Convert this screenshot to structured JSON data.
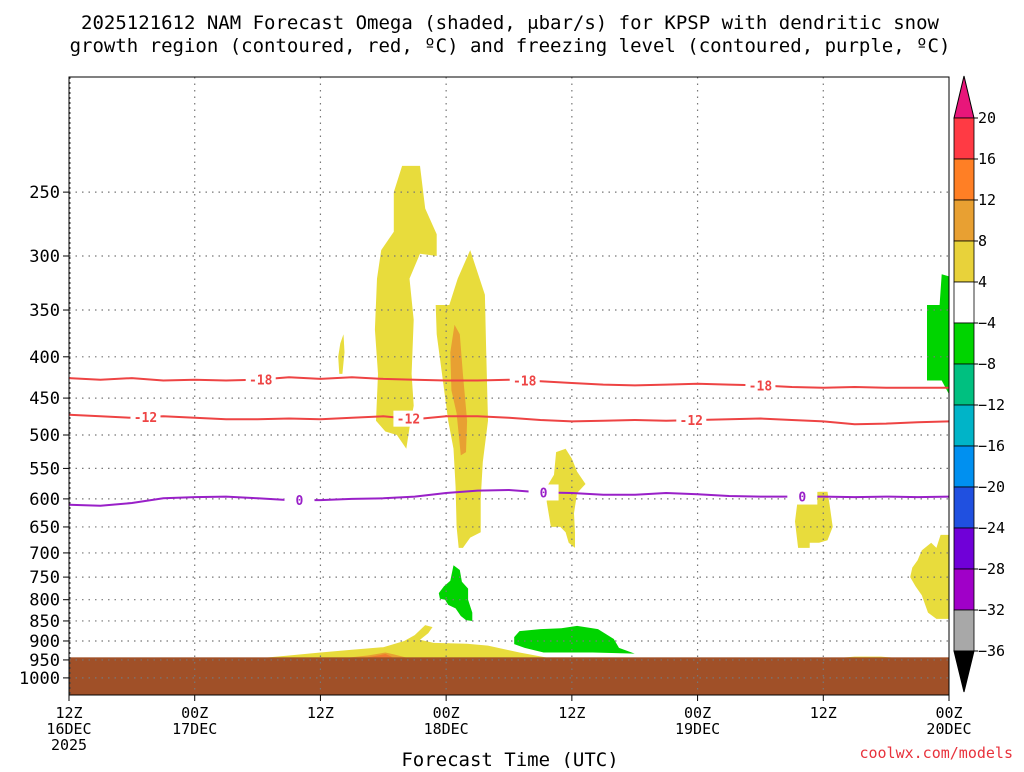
{
  "chart_data": {
    "type": "time-height-cross-section",
    "title": {
      "line1": "2025121612 NAM Forecast Omega (shaded, μbar/s) for KPSP with dendritic snow",
      "line2": "growth region (contoured, red, ºC) and freezing level (contoured, purple, ºC)"
    },
    "xlabel": "Forecast Time (UTC)",
    "credit": "coolwx.com/models",
    "y_axis": {
      "ticks": [
        "250",
        "300",
        "350",
        "400",
        "450",
        "500",
        "550",
        "600",
        "650",
        "700",
        "750",
        "800",
        "850",
        "900",
        "950",
        "1000"
      ],
      "range_hpa": [
        1050,
        180
      ]
    },
    "x_axis": {
      "range_hours": [
        0,
        84
      ],
      "ticks": [
        {
          "hour": 0,
          "lines": [
            "12Z",
            "16DEC",
            "2025"
          ]
        },
        {
          "hour": 12,
          "lines": [
            "00Z",
            "17DEC"
          ]
        },
        {
          "hour": 24,
          "lines": [
            "12Z"
          ]
        },
        {
          "hour": 36,
          "lines": [
            "00Z",
            "18DEC"
          ]
        },
        {
          "hour": 48,
          "lines": [
            "12Z"
          ]
        },
        {
          "hour": 60,
          "lines": [
            "00Z",
            "19DEC"
          ]
        },
        {
          "hour": 72,
          "lines": [
            "12Z"
          ]
        },
        {
          "hour": 84,
          "lines": [
            "00Z",
            "20DEC"
          ]
        }
      ]
    },
    "colorbar": {
      "labels": [
        "20",
        "16",
        "12",
        "8",
        "4",
        "−4",
        "−8",
        "−12",
        "−16",
        "−20",
        "−24",
        "−28",
        "−32",
        "−36"
      ],
      "segments": [
        "#ff3a44",
        "#ff7f25",
        "#e8a032",
        "#e8d23a",
        "#ffffff",
        "#00d400",
        "#00c080",
        "#00b4c8",
        "#0090f0",
        "#2050e0",
        "#7000d8",
        "#a000c8",
        "#a8a8a8"
      ],
      "top_arrow_color": "#e8167a",
      "bottom_arrow_color": "#000000"
    },
    "contours": [
      {
        "label": "-18",
        "color": "#ee4444",
        "label_hours": [
          18.3,
          43.5,
          66.0
        ],
        "points": [
          [
            0,
            425
          ],
          [
            3,
            427
          ],
          [
            6,
            425
          ],
          [
            9,
            428
          ],
          [
            12,
            427
          ],
          [
            15,
            428
          ],
          [
            18,
            427
          ],
          [
            21,
            424
          ],
          [
            24,
            426
          ],
          [
            27,
            424
          ],
          [
            30,
            426
          ],
          [
            33,
            427
          ],
          [
            36,
            428
          ],
          [
            39,
            428
          ],
          [
            42,
            427
          ],
          [
            45,
            429
          ],
          [
            48,
            431
          ],
          [
            51,
            433
          ],
          [
            54,
            434
          ],
          [
            57,
            433
          ],
          [
            60,
            432
          ],
          [
            63,
            433
          ],
          [
            66,
            434
          ],
          [
            69,
            436
          ],
          [
            72,
            437
          ],
          [
            75,
            436
          ],
          [
            78,
            437
          ],
          [
            81,
            437
          ],
          [
            84,
            437
          ]
        ]
      },
      {
        "label": "-12",
        "color": "#ee4444",
        "label_hours": [
          7.3,
          32.4,
          59.4
        ],
        "points": [
          [
            0,
            472
          ],
          [
            3,
            474
          ],
          [
            6,
            476
          ],
          [
            9,
            474
          ],
          [
            12,
            476
          ],
          [
            15,
            478
          ],
          [
            18,
            478
          ],
          [
            21,
            477
          ],
          [
            24,
            478
          ],
          [
            27,
            476
          ],
          [
            30,
            474
          ],
          [
            33,
            478
          ],
          [
            36,
            474
          ],
          [
            39,
            474
          ],
          [
            42,
            476
          ],
          [
            45,
            479
          ],
          [
            48,
            481
          ],
          [
            51,
            480
          ],
          [
            54,
            479
          ],
          [
            57,
            480
          ],
          [
            60,
            479
          ],
          [
            63,
            478
          ],
          [
            66,
            477
          ],
          [
            69,
            479
          ],
          [
            72,
            481
          ],
          [
            75,
            485
          ],
          [
            78,
            484
          ],
          [
            81,
            482
          ],
          [
            84,
            481
          ]
        ]
      },
      {
        "label": "0",
        "color": "#9920c8",
        "label_hours": [
          22.0,
          45.3,
          70.0
        ],
        "points": [
          [
            0,
            610
          ],
          [
            3,
            612
          ],
          [
            6,
            607
          ],
          [
            9,
            599
          ],
          [
            12,
            597
          ],
          [
            15,
            596
          ],
          [
            18,
            599
          ],
          [
            21,
            602
          ],
          [
            24,
            602
          ],
          [
            27,
            600
          ],
          [
            30,
            599
          ],
          [
            33,
            596
          ],
          [
            36,
            590
          ],
          [
            39,
            586
          ],
          [
            42,
            585
          ],
          [
            45,
            589
          ],
          [
            48,
            590
          ],
          [
            51,
            593
          ],
          [
            54,
            593
          ],
          [
            57,
            590
          ],
          [
            60,
            592
          ],
          [
            63,
            595
          ],
          [
            66,
            596
          ],
          [
            69,
            596
          ],
          [
            72,
            596
          ],
          [
            75,
            597
          ],
          [
            78,
            596
          ],
          [
            81,
            597
          ],
          [
            84,
            596
          ]
        ]
      }
    ],
    "shaded_regions": [
      {
        "name": "omega-plus4-to-8",
        "color": "#e8dc3c",
        "points": [
          [
            31.8,
            232
          ],
          [
            33.5,
            232
          ],
          [
            34.0,
            262
          ],
          [
            35.1,
            282
          ],
          [
            35.1,
            300
          ],
          [
            33.5,
            298
          ],
          [
            32.5,
            320
          ],
          [
            32.9,
            360
          ],
          [
            32.7,
            420
          ],
          [
            32.9,
            460
          ],
          [
            32.5,
            490
          ],
          [
            32.2,
            520
          ],
          [
            31.3,
            500
          ],
          [
            30.2,
            495
          ],
          [
            29.3,
            480
          ],
          [
            29.5,
            420
          ],
          [
            29.2,
            370
          ],
          [
            29.4,
            320
          ],
          [
            29.8,
            295
          ],
          [
            31.0,
            280
          ],
          [
            31.0,
            250
          ]
        ]
      },
      {
        "name": "omega-plus4-to-8",
        "color": "#e8dc3c",
        "points": [
          [
            38.3,
            295
          ],
          [
            39.7,
            335
          ],
          [
            39.8,
            385
          ],
          [
            40.0,
            480
          ],
          [
            39.5,
            540
          ],
          [
            39.3,
            600
          ],
          [
            39.3,
            660
          ],
          [
            38.3,
            670
          ],
          [
            37.6,
            690
          ],
          [
            37.2,
            690
          ],
          [
            37.0,
            650
          ],
          [
            36.9,
            580
          ],
          [
            36.7,
            520
          ],
          [
            36.2,
            480
          ],
          [
            35.6,
            420
          ],
          [
            35.1,
            375
          ],
          [
            35.0,
            345
          ],
          [
            36.3,
            345
          ],
          [
            37.1,
            320
          ]
        ]
      },
      {
        "name": "omega-plus4-to-8",
        "color": "#e8dc3c",
        "points": [
          [
            26.2,
            375
          ],
          [
            26.3,
            395
          ],
          [
            26.1,
            420
          ],
          [
            25.8,
            420
          ],
          [
            25.7,
            400
          ],
          [
            25.9,
            385
          ]
        ]
      },
      {
        "name": "omega-plus4-to-8",
        "color": "#e8dc3c",
        "points": [
          [
            47.4,
            520
          ],
          [
            48.0,
            535
          ],
          [
            48.5,
            555
          ],
          [
            49.3,
            575
          ],
          [
            48.5,
            590
          ],
          [
            48.2,
            625
          ],
          [
            48.3,
            660
          ],
          [
            48.3,
            690
          ],
          [
            47.7,
            680
          ],
          [
            47.4,
            660
          ],
          [
            46.9,
            650
          ],
          [
            46.0,
            650
          ],
          [
            45.6,
            605
          ],
          [
            45.6,
            580
          ],
          [
            46.3,
            560
          ],
          [
            46.5,
            525
          ]
        ]
      },
      {
        "name": "omega-plus4-to-8",
        "color": "#e8dc3c",
        "points": [
          [
            71.7,
            588
          ],
          [
            72.4,
            588
          ],
          [
            72.6,
            610
          ],
          [
            72.9,
            650
          ],
          [
            72.4,
            675
          ],
          [
            71.6,
            680
          ],
          [
            70.7,
            680
          ],
          [
            70.7,
            690
          ],
          [
            69.6,
            690
          ],
          [
            69.3,
            640
          ],
          [
            69.5,
            610
          ],
          [
            69.3,
            590
          ]
        ]
      },
      {
        "name": "omega-plus4-to-8",
        "color": "#e8dc3c",
        "points": [
          [
            83.2,
            665
          ],
          [
            84.0,
            665
          ],
          [
            84.0,
            845
          ],
          [
            82.8,
            845
          ],
          [
            82.0,
            830
          ],
          [
            81.4,
            790
          ],
          [
            80.8,
            770
          ],
          [
            80.3,
            750
          ],
          [
            80.5,
            730
          ],
          [
            81.0,
            715
          ],
          [
            81.4,
            695
          ],
          [
            82.3,
            680
          ],
          [
            82.8,
            690
          ]
        ]
      },
      {
        "name": "omega-plus4-to-8",
        "color": "#e8dc3c",
        "points": [
          [
            18.0,
            946
          ],
          [
            21.0,
            938
          ],
          [
            24.0,
            930
          ],
          [
            27.0,
            923
          ],
          [
            30.0,
            916
          ],
          [
            32.0,
            900
          ],
          [
            33.0,
            885
          ],
          [
            34.0,
            860
          ],
          [
            34.7,
            865
          ],
          [
            34.3,
            880
          ],
          [
            33.5,
            897
          ],
          [
            34.8,
            905
          ],
          [
            38.0,
            907
          ],
          [
            40.0,
            912
          ],
          [
            43.0,
            930
          ],
          [
            46.0,
            946
          ]
        ]
      },
      {
        "name": "omega-plus4-to-8",
        "color": "#e8dc3c",
        "points": [
          [
            73.0,
            946
          ],
          [
            75.0,
            941
          ],
          [
            77.5,
            941
          ],
          [
            79.5,
            946
          ]
        ]
      },
      {
        "name": "omega-plus8-to-12",
        "color": "#e8a032",
        "points": [
          [
            36.8,
            365
          ],
          [
            37.3,
            375
          ],
          [
            37.6,
            420
          ],
          [
            38.0,
            480
          ],
          [
            37.9,
            525
          ],
          [
            37.4,
            530
          ],
          [
            37.0,
            470
          ],
          [
            36.5,
            440
          ],
          [
            36.4,
            395
          ]
        ]
      },
      {
        "name": "omega-plus8-to-12",
        "color": "#e8a032",
        "points": [
          [
            26.0,
            946
          ],
          [
            28.5,
            938
          ],
          [
            30.2,
            930
          ],
          [
            31.0,
            935
          ],
          [
            32.5,
            946
          ]
        ]
      },
      {
        "name": "omega-plus12-to-16",
        "color": "#f07a30",
        "points": [
          [
            28.0,
            946
          ],
          [
            29.5,
            938
          ],
          [
            30.2,
            934
          ],
          [
            30.7,
            940
          ],
          [
            31.0,
            946
          ]
        ]
      },
      {
        "name": "omega-minus4-to-8",
        "color": "#00d400",
        "points": [
          [
            84.0,
            330
          ],
          [
            84.0,
            445
          ],
          [
            83.3,
            428
          ],
          [
            81.9,
            428
          ],
          [
            81.9,
            345
          ],
          [
            83.1,
            345
          ],
          [
            83.3,
            316
          ],
          [
            84.0,
            318
          ]
        ]
      },
      {
        "name": "omega-minus4-to-8",
        "color": "#00d400",
        "points": [
          [
            36.7,
            725
          ],
          [
            37.3,
            735
          ],
          [
            37.5,
            760
          ],
          [
            38.1,
            775
          ],
          [
            38.1,
            800
          ],
          [
            38.5,
            830
          ],
          [
            38.5,
            850
          ],
          [
            37.9,
            848
          ],
          [
            37.4,
            838
          ],
          [
            36.9,
            820
          ],
          [
            36.2,
            812
          ],
          [
            35.9,
            800
          ],
          [
            35.4,
            798
          ],
          [
            35.3,
            785
          ],
          [
            35.8,
            770
          ],
          [
            36.4,
            758
          ]
        ]
      },
      {
        "name": "omega-minus4-to-8",
        "color": "#00d400",
        "points": [
          [
            45.0,
            870
          ],
          [
            47.0,
            868
          ],
          [
            48.5,
            862
          ],
          [
            50.5,
            870
          ],
          [
            52.0,
            895
          ],
          [
            52.5,
            918
          ],
          [
            54.0,
            933
          ],
          [
            50.0,
            930
          ],
          [
            47.0,
            930
          ],
          [
            45.3,
            930
          ],
          [
            43.5,
            918
          ],
          [
            42.5,
            908
          ],
          [
            42.5,
            890
          ],
          [
            43.0,
            875
          ]
        ]
      }
    ],
    "terrain": {
      "color": "#a05028",
      "top_hpa": 943,
      "bottom_hpa": 1050
    }
  }
}
